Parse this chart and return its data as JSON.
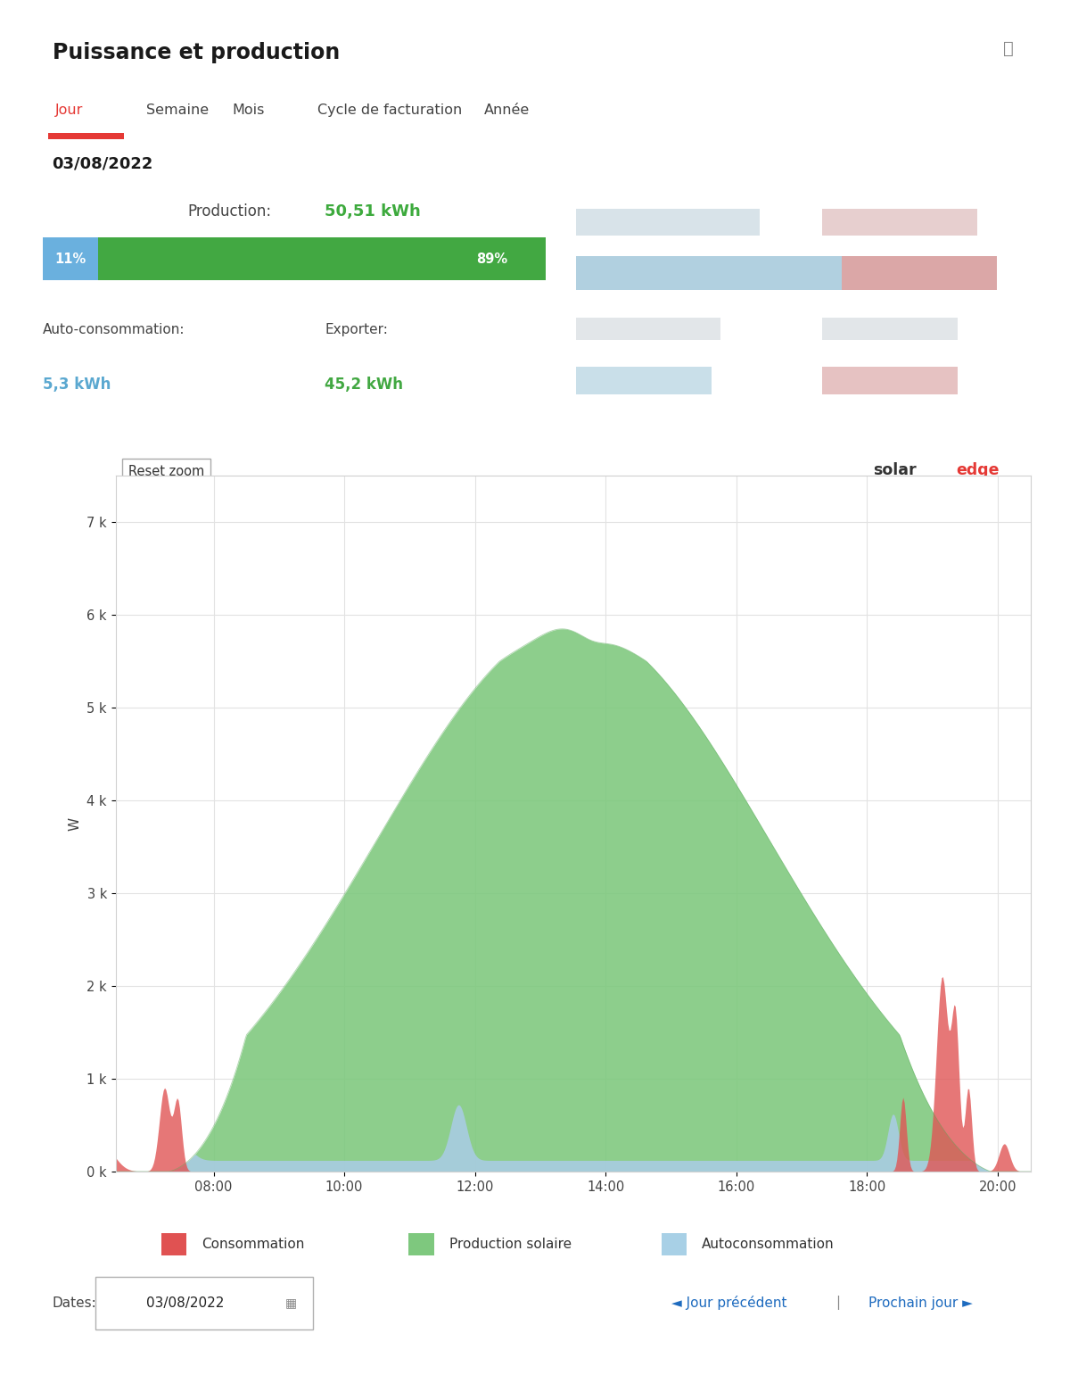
{
  "title": "Puissance et production",
  "tabs": [
    "Jour",
    "Semaine",
    "Mois",
    "Cycle de facturation",
    "Année"
  ],
  "active_tab": "Jour",
  "date": "03/08/2022",
  "production_label": "Production:",
  "production_value": "50,51 kWh",
  "auto_conso_label": "Auto-consommation:",
  "auto_conso_value": "5,3 kWh",
  "export_label": "Exporter:",
  "export_value": "45,2 kWh",
  "bar_pct_left": "11%",
  "bar_pct_right": "89%",
  "bar_color_left": "#6ab0de",
  "bar_color_right": "#4caf50",
  "ylabel": "W",
  "yticks": [
    0,
    1000,
    2000,
    3000,
    4000,
    5000,
    6000,
    7000
  ],
  "ytick_labels": [
    "0 k",
    "1 k",
    "2 k",
    "3 k",
    "4 k",
    "5 k",
    "6 k",
    "7 k"
  ],
  "xtick_labels": [
    "08:00",
    "10:00",
    "12:00",
    "14:00",
    "16:00",
    "18:00",
    "20:00"
  ],
  "legend_items": [
    "Consommation",
    "Production solaire",
    "Autoconsommation"
  ],
  "legend_colors": [
    "#e05252",
    "#7ec87e",
    "#a8d0e6"
  ],
  "bg_color": "#ffffff",
  "panel_bg": "#f5f5f5",
  "grid_color": "#e0e0e0",
  "reset_zoom_label": "Reset zoom",
  "solar_text": "solar",
  "edge_text": "edge",
  "dates_label": "Dates:",
  "prev_label": "◄ Jour précédent",
  "next_label": "Prochain jour ►",
  "nav_separator": "|",
  "xlim_start": 6.5,
  "xlim_end": 20.5,
  "ylim_max": 7500
}
